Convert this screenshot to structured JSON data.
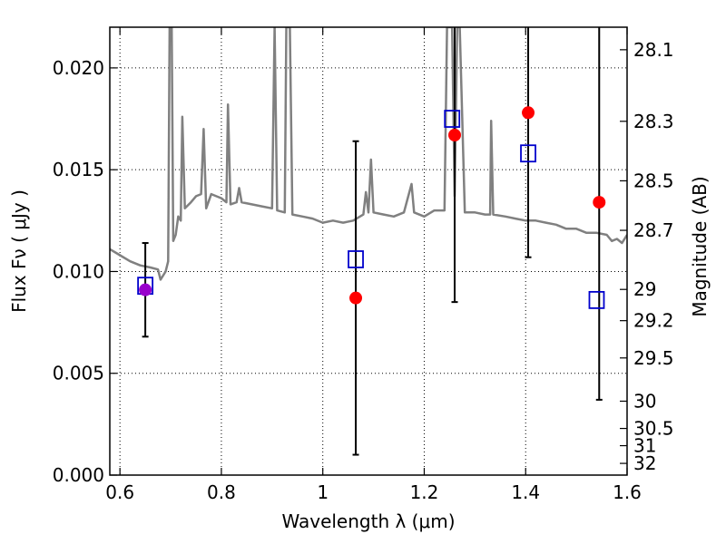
{
  "chart_data": {
    "type": "scatter",
    "xlabel": "Wavelength  λ (μm)",
    "ylabel": "Flux  Fν  ( μJy )",
    "ylabel_right": "Magnitude (AB)",
    "xlim": [
      0.58,
      1.6
    ],
    "ylim": [
      0.0,
      0.022
    ],
    "x_ticks": [
      0.6,
      0.8,
      1.0,
      1.2,
      1.4,
      1.6
    ],
    "x_tick_labels": [
      "0.6",
      "0.8",
      "1",
      "1.2",
      "1.4",
      "1.6"
    ],
    "y_ticks": [
      0.0,
      0.005,
      0.01,
      0.015,
      0.02
    ],
    "y_tick_labels": [
      "0.000",
      "0.005",
      "0.010",
      "0.015",
      "0.020"
    ],
    "right_ticks": [
      {
        "mag": 28.1,
        "label": "28.1"
      },
      {
        "mag": 28.3,
        "label": "28.3"
      },
      {
        "mag": 28.5,
        "label": "28.5"
      },
      {
        "mag": 28.7,
        "label": "28.7"
      },
      {
        "mag": 29.0,
        "label": "29"
      },
      {
        "mag": 29.2,
        "label": "29.2"
      },
      {
        "mag": 29.5,
        "label": "29.5"
      },
      {
        "mag": 30.0,
        "label": "30"
      },
      {
        "mag": 30.5,
        "label": "30.5"
      },
      {
        "mag": 31.0,
        "label": "31"
      },
      {
        "mag": 32.0,
        "label": "32"
      }
    ],
    "grid": true,
    "grid_style": "dotted",
    "colors": {
      "spectrum": "#808080",
      "observed": "#ff0000",
      "model": "#0000cc",
      "errorbar": "#000000",
      "overlap": "#9900cc"
    },
    "series": [
      {
        "kind": "line",
        "points": [
          [
            0.58,
            0.0111
          ],
          [
            0.6,
            0.0108
          ],
          [
            0.62,
            0.0105
          ],
          [
            0.64,
            0.0103
          ],
          [
            0.66,
            0.0102
          ],
          [
            0.675,
            0.0101
          ],
          [
            0.68,
            0.0096
          ],
          [
            0.69,
            0.01
          ],
          [
            0.695,
            0.0105
          ],
          [
            0.698,
            0.022
          ],
          [
            0.702,
            0.022
          ],
          [
            0.705,
            0.0115
          ],
          [
            0.71,
            0.0118
          ],
          [
            0.715,
            0.0127
          ],
          [
            0.72,
            0.0125
          ],
          [
            0.723,
            0.0176
          ],
          [
            0.728,
            0.0131
          ],
          [
            0.74,
            0.0134
          ],
          [
            0.75,
            0.0137
          ],
          [
            0.76,
            0.0138
          ],
          [
            0.765,
            0.017
          ],
          [
            0.77,
            0.0131
          ],
          [
            0.78,
            0.0138
          ],
          [
            0.8,
            0.0136
          ],
          [
            0.81,
            0.0134
          ],
          [
            0.813,
            0.0182
          ],
          [
            0.818,
            0.0133
          ],
          [
            0.83,
            0.0134
          ],
          [
            0.835,
            0.0141
          ],
          [
            0.84,
            0.0134
          ],
          [
            0.86,
            0.0133
          ],
          [
            0.88,
            0.0132
          ],
          [
            0.9,
            0.0131
          ],
          [
            0.905,
            0.022
          ],
          [
            0.91,
            0.013
          ],
          [
            0.925,
            0.0129
          ],
          [
            0.928,
            0.022
          ],
          [
            0.935,
            0.022
          ],
          [
            0.94,
            0.0128
          ],
          [
            0.96,
            0.0127
          ],
          [
            0.98,
            0.0126
          ],
          [
            1.0,
            0.0124
          ],
          [
            1.02,
            0.0125
          ],
          [
            1.04,
            0.0124
          ],
          [
            1.06,
            0.0125
          ],
          [
            1.08,
            0.0128
          ],
          [
            1.085,
            0.0139
          ],
          [
            1.09,
            0.0129
          ],
          [
            1.095,
            0.0155
          ],
          [
            1.1,
            0.0129
          ],
          [
            1.12,
            0.0128
          ],
          [
            1.14,
            0.0127
          ],
          [
            1.16,
            0.0129
          ],
          [
            1.175,
            0.0143
          ],
          [
            1.18,
            0.0129
          ],
          [
            1.2,
            0.0127
          ],
          [
            1.22,
            0.013
          ],
          [
            1.24,
            0.013
          ],
          [
            1.245,
            0.022
          ],
          [
            1.255,
            0.022
          ],
          [
            1.26,
            0.0137
          ],
          [
            1.265,
            0.022
          ],
          [
            1.27,
            0.022
          ],
          [
            1.28,
            0.0129
          ],
          [
            1.3,
            0.0129
          ],
          [
            1.32,
            0.0128
          ],
          [
            1.33,
            0.0128
          ],
          [
            1.332,
            0.0174
          ],
          [
            1.336,
            0.0128
          ],
          [
            1.36,
            0.0127
          ],
          [
            1.38,
            0.0126
          ],
          [
            1.4,
            0.0125
          ],
          [
            1.42,
            0.0125
          ],
          [
            1.44,
            0.0124
          ],
          [
            1.46,
            0.0123
          ],
          [
            1.48,
            0.0121
          ],
          [
            1.5,
            0.0121
          ],
          [
            1.52,
            0.0119
          ],
          [
            1.54,
            0.0119
          ],
          [
            1.56,
            0.0118
          ],
          [
            1.57,
            0.0115
          ],
          [
            1.58,
            0.0116
          ],
          [
            1.59,
            0.0114
          ],
          [
            1.6,
            0.0118
          ]
        ]
      },
      {
        "kind": "observed",
        "points": [
          {
            "x": 0.65,
            "y": 0.0091,
            "yerr_low": 0.0068,
            "yerr_high": 0.0114
          },
          {
            "x": 1.065,
            "y": 0.0087,
            "yerr_low": 0.001,
            "yerr_high": 0.0164
          },
          {
            "x": 1.26,
            "y": 0.0167,
            "yerr_low": 0.0085,
            "yerr_high": 0.022
          },
          {
            "x": 1.405,
            "y": 0.0178,
            "yerr_low": 0.0107,
            "yerr_high": 0.022
          },
          {
            "x": 1.545,
            "y": 0.0134,
            "yerr_low": 0.0037,
            "yerr_high": 0.022
          }
        ]
      },
      {
        "kind": "model",
        "points": [
          {
            "x": 0.65,
            "y": 0.0093
          },
          {
            "x": 1.065,
            "y": 0.0106
          },
          {
            "x": 1.255,
            "y": 0.0175
          },
          {
            "x": 1.405,
            "y": 0.0158
          },
          {
            "x": 1.54,
            "y": 0.0086
          }
        ]
      }
    ]
  }
}
